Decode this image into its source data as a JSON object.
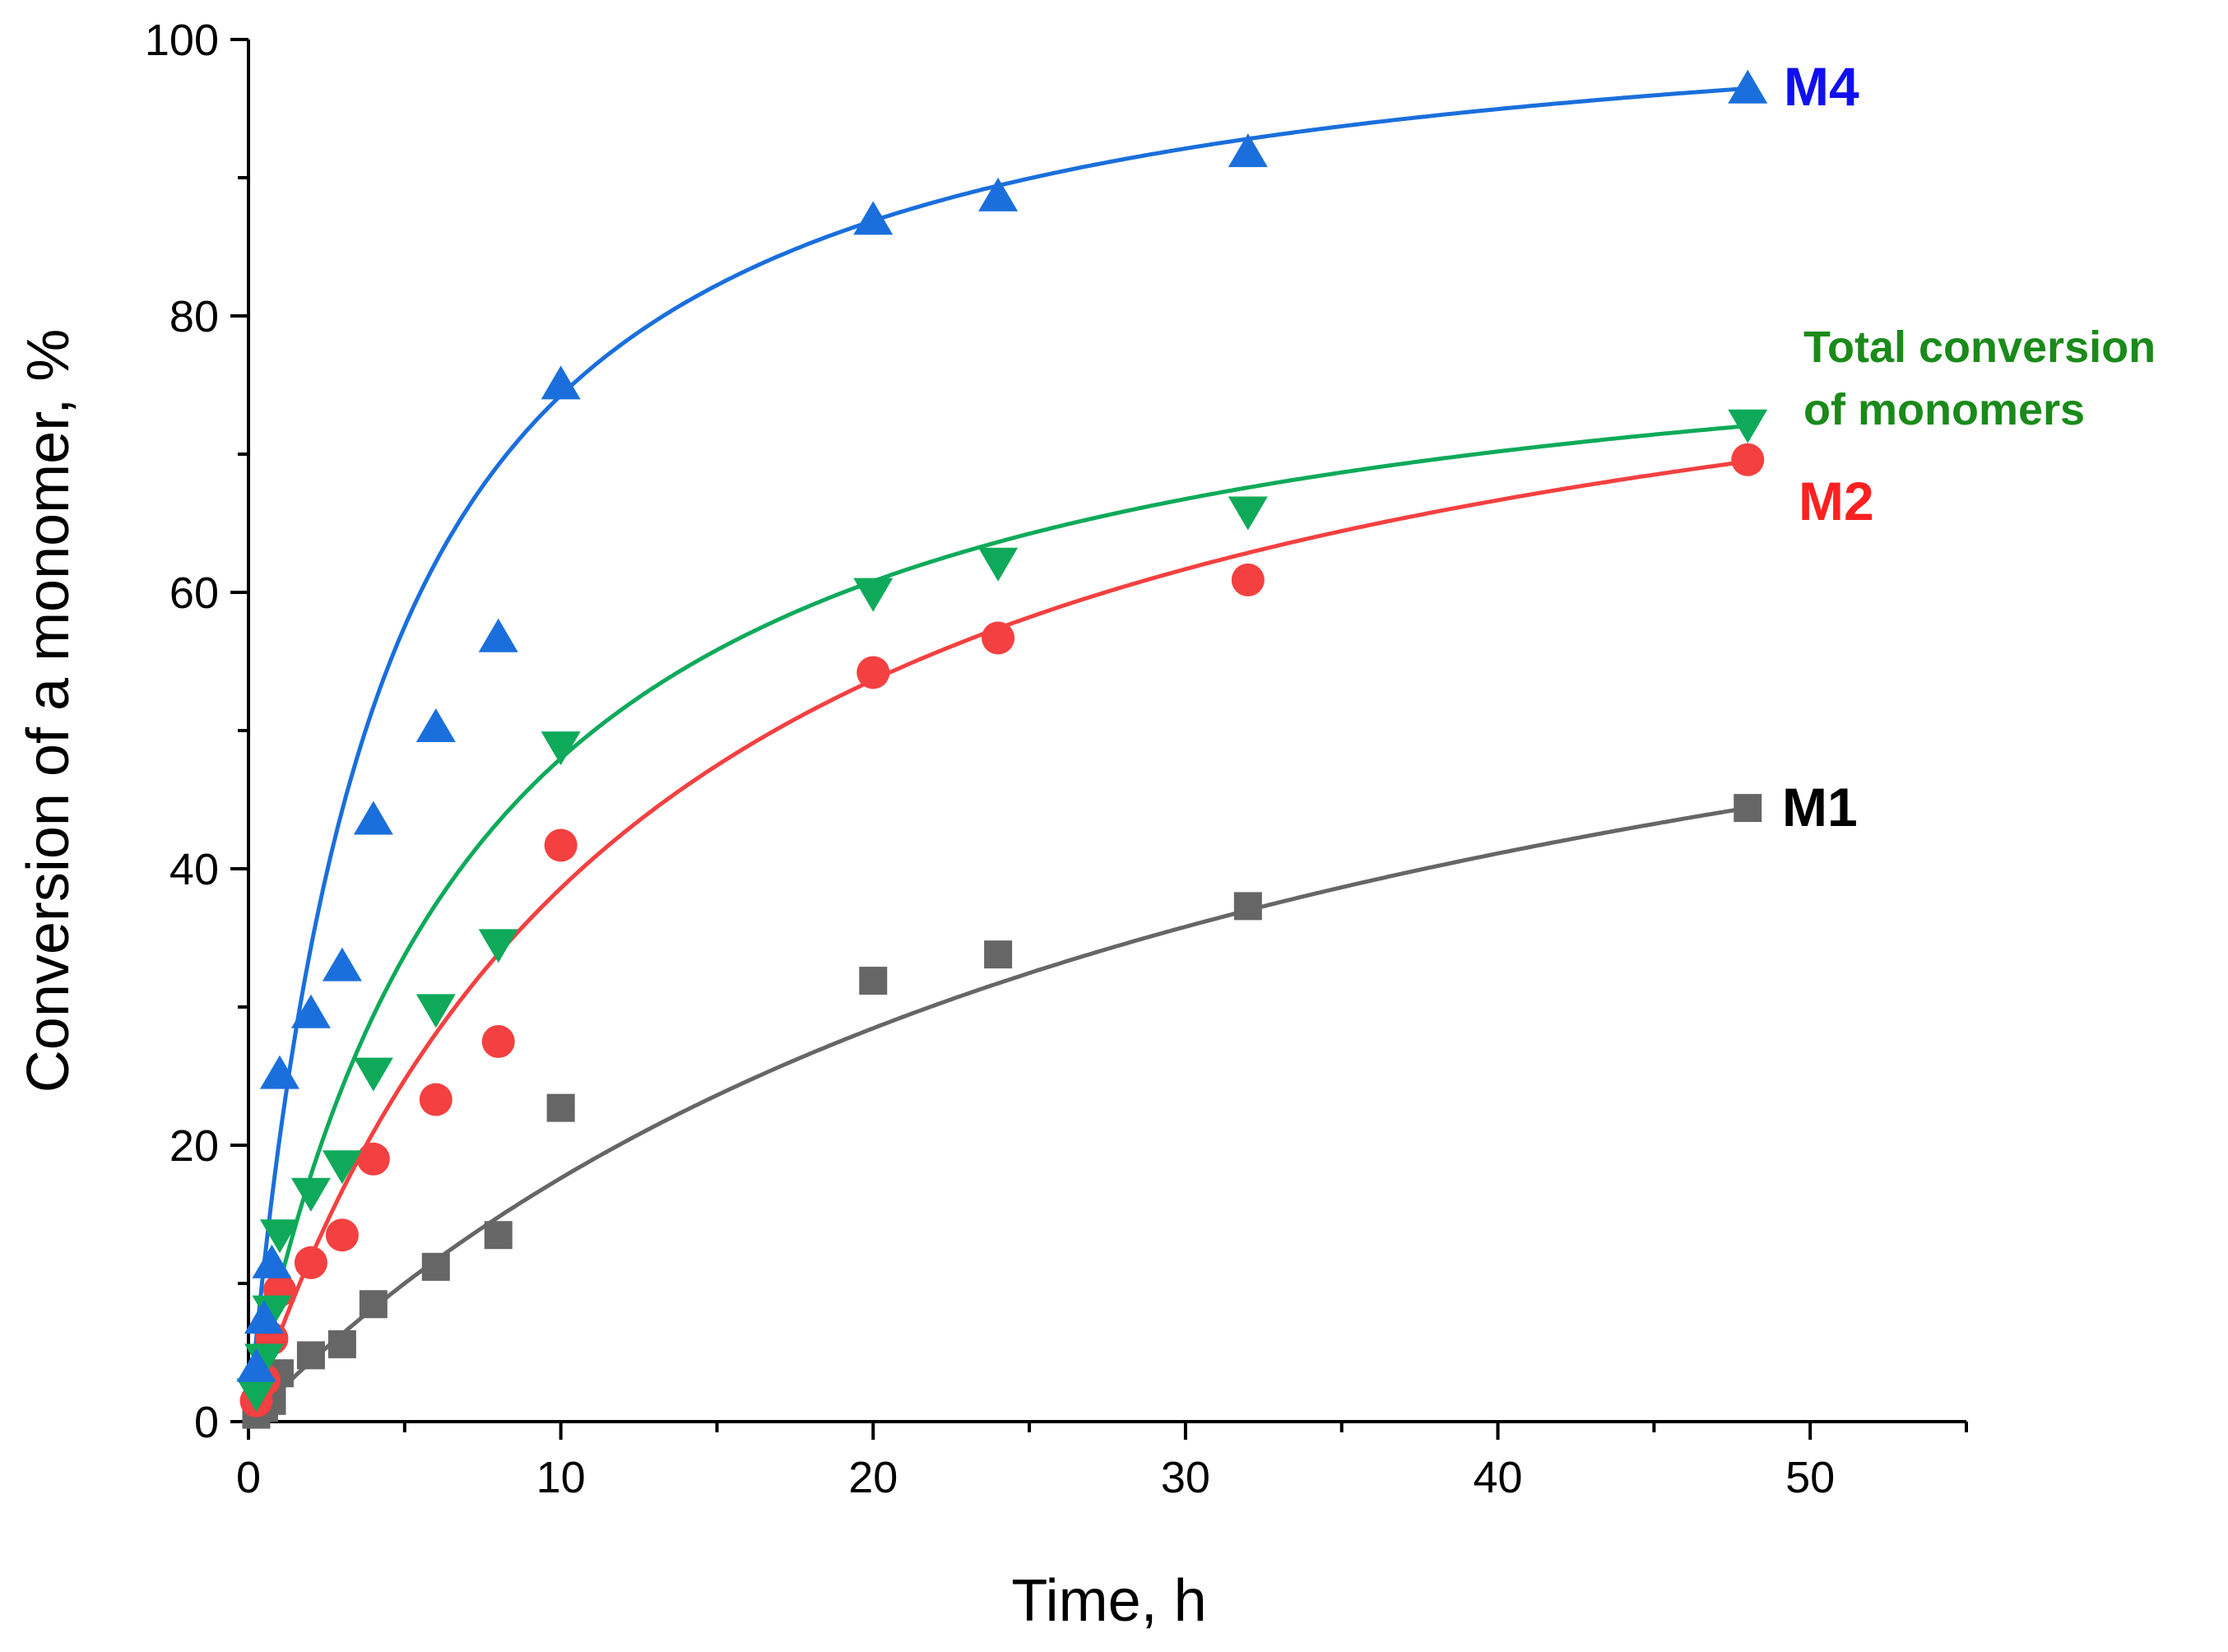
{
  "chart_data": {
    "type": "scatter",
    "title": "",
    "xlabel": "Time, h",
    "ylabel": "Conversion of a monomer, %",
    "xlim": [
      0,
      55
    ],
    "ylim": [
      0,
      100
    ],
    "x_ticks": [
      0,
      10,
      20,
      30,
      40,
      50
    ],
    "y_ticks": [
      0,
      20,
      40,
      60,
      80,
      100
    ],
    "x_tick_labels": [
      "0",
      "10",
      "20",
      "30",
      "40",
      "50"
    ],
    "y_tick_labels": [
      "0",
      "20",
      "40",
      "60",
      "80",
      "100"
    ],
    "grid": false,
    "legend": "inline labels at right end of curves",
    "series": [
      {
        "name": "M1",
        "label": "M1",
        "color": "#666666",
        "label_color": "#000000",
        "marker": "square",
        "x": [
          0.25,
          0.5,
          0.75,
          1,
          2,
          3,
          4,
          6,
          8,
          10,
          20,
          24,
          32,
          48
        ],
        "y": [
          0.5,
          1,
          1.5,
          3.5,
          4.8,
          5.6,
          8.5,
          11.2,
          13.5,
          22.7,
          31.9,
          33.8,
          37.3,
          44.4
        ],
        "fit": {
          "model": "hyperbolic",
          "a": 74,
          "b": 32
        }
      },
      {
        "name": "M2",
        "label": "M2",
        "color": "#f44040",
        "label_color": "#ff2020",
        "marker": "circle",
        "x": [
          0.25,
          0.5,
          0.75,
          1,
          2,
          3,
          4,
          6,
          8,
          10,
          20,
          24,
          32,
          48
        ],
        "y": [
          1.5,
          3,
          6,
          9.5,
          11.5,
          13.5,
          19,
          23.3,
          27.5,
          41.7,
          54.2,
          56.7,
          60.9,
          69.6
        ],
        "fit": {
          "model": "hyperbolic",
          "a": 88,
          "b": 12.8
        }
      },
      {
        "name": "Total conversion of monomers",
        "label": [
          "Total conversion",
          "of monomers"
        ],
        "color": "#0eaa5a",
        "label_color": "#1a8a1a",
        "marker": "triangle-down",
        "x": [
          0.25,
          0.5,
          0.75,
          1,
          2,
          3,
          4,
          6,
          8,
          10,
          20,
          24,
          32,
          48
        ],
        "y": [
          2,
          4.5,
          8,
          13.5,
          16.5,
          18.5,
          25.2,
          29.8,
          34.5,
          48.8,
          59.9,
          62.1,
          65.8,
          72.1
        ],
        "fit": {
          "model": "hyperbolic",
          "a": 83,
          "b": 7.3
        }
      },
      {
        "name": "M4",
        "label": "M4",
        "color": "#1a6fdc",
        "label_color": "#1010ee",
        "marker": "triangle-up",
        "x": [
          0.25,
          0.5,
          0.75,
          1,
          2,
          3,
          4,
          6,
          8,
          10,
          20,
          24,
          32,
          48
        ],
        "y": [
          4,
          7.5,
          11.5,
          25.2,
          29.6,
          33,
          43.6,
          50.3,
          56.8,
          75.1,
          87,
          88.7,
          91.9,
          96.5
        ],
        "fit": {
          "model": "hyperbolic",
          "a": 104.7,
          "b": 4.1
        }
      }
    ]
  }
}
